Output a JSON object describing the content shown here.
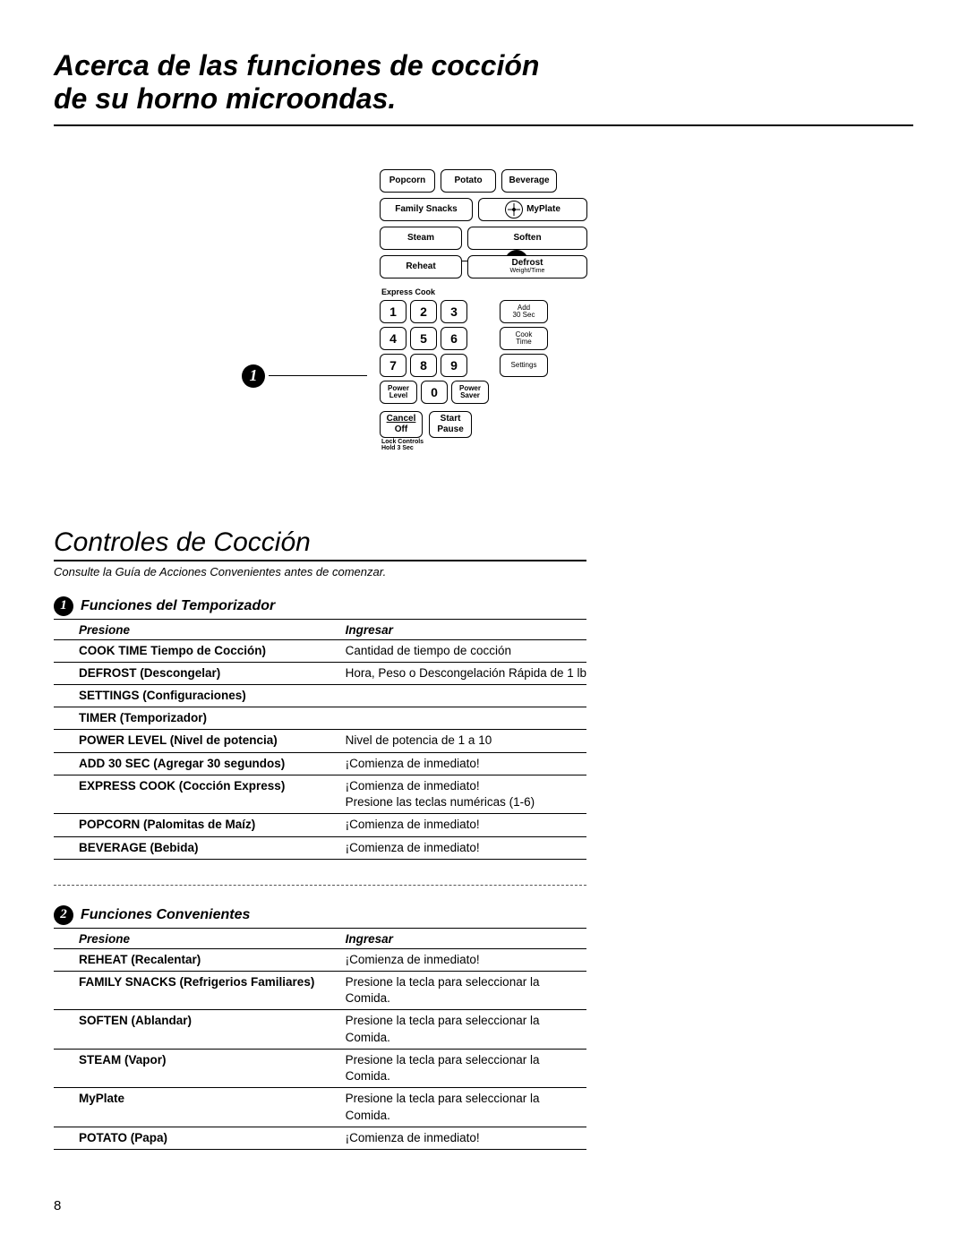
{
  "title_line1": "Acerca de las funciones de cocción",
  "title_line2": "de su horno microondas.",
  "panel": {
    "popcorn": "Popcorn",
    "potato": "Potato",
    "beverage": "Beverage",
    "family_snacks": "Family Snacks",
    "myplate": "MyPlate",
    "steam": "Steam",
    "soften": "Soften",
    "reheat": "Reheat",
    "defrost": "Defrost",
    "defrost_sub": "Weight/Time",
    "express_cook": "Express Cook",
    "nums": [
      "1",
      "2",
      "3",
      "4",
      "5",
      "6",
      "7",
      "8",
      "9",
      "0"
    ],
    "add30_l1": "Add",
    "add30_l2": "30 Sec",
    "cooktime_l1": "Cook",
    "cooktime_l2": "Time",
    "settings": "Settings",
    "power_level_l1": "Power",
    "power_level_l2": "Level",
    "power_saver_l1": "Power",
    "power_saver_l2": "Saver",
    "cancel_l1": "Cancel",
    "cancel_l2": "Off",
    "start_l1": "Start",
    "start_l2": "Pause",
    "lock_l1": "Lock Controls",
    "lock_l2": "Hold 3 Sec"
  },
  "callouts": {
    "one": "1",
    "two": "2"
  },
  "section_title": "Controles de Cocción",
  "guide_note": "Consulte la Guía de Acciones Convenientes antes de comenzar.",
  "table1": {
    "badge": "1",
    "title": "Funciones del Temporizador",
    "col1": "Presione",
    "col2": "Ingresar",
    "rows": [
      {
        "p": "COOK TIME Tiempo de Cocción)",
        "i": "Cantidad de tiempo de cocción"
      },
      {
        "p": "DEFROST (Descongelar)",
        "i": "Hora, Peso o Descongelación Rápida de 1 lb"
      },
      {
        "p": "SETTINGS (Configuraciones)",
        "i": ""
      },
      {
        "p": "TIMER (Temporizador)",
        "i": ""
      },
      {
        "p": "POWER LEVEL (Nivel de potencia)",
        "i": "Nivel de potencia de 1 a 10"
      },
      {
        "p": "ADD 30 SEC (Agregar 30 segundos)",
        "i": "¡Comienza de inmediato!"
      },
      {
        "p": "EXPRESS COOK (Cocción Express)",
        "i": "¡Comienza de inmediato!\nPresione las teclas numéricas (1-6)"
      },
      {
        "p": "POPCORN (Palomitas de Maíz)",
        "i": "¡Comienza de inmediato!"
      },
      {
        "p": "BEVERAGE (Bebida)",
        "i": "¡Comienza de inmediato!"
      }
    ]
  },
  "table2": {
    "badge": "2",
    "title": "Funciones Convenientes",
    "col1": "Presione",
    "col2": "Ingresar",
    "rows": [
      {
        "p": "REHEAT (Recalentar)",
        "i": "¡Comienza de inmediato!"
      },
      {
        "p": "FAMILY SNACKS (Refrigerios Familiares)",
        "i": "Presione la tecla para seleccionar la Comida."
      },
      {
        "p": "SOFTEN (Ablandar)",
        "i": "Presione la tecla para seleccionar la Comida."
      },
      {
        "p": "STEAM (Vapor)",
        "i": "Presione la tecla para seleccionar la Comida."
      },
      {
        "p": "MyPlate",
        "i": "Presione la tecla para seleccionar la Comida."
      },
      {
        "p": "POTATO (Papa)",
        "i": "¡Comienza de inmediato!"
      }
    ]
  },
  "page_number": "8"
}
